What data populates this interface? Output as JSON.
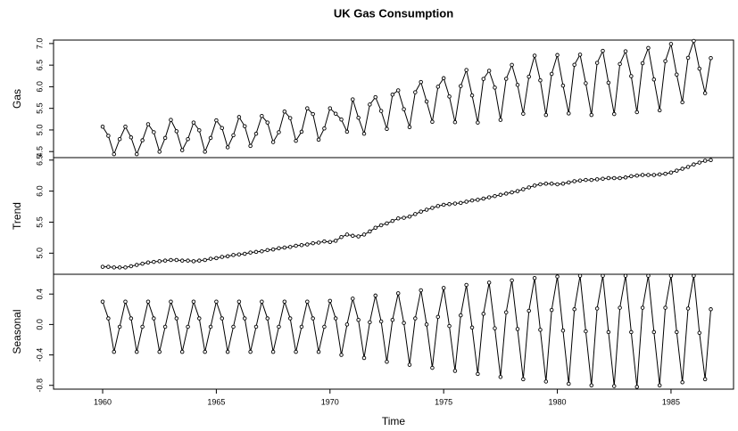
{
  "chart_data": {
    "type": "line",
    "title": "UK Gas Consumption",
    "xlabel": "Time",
    "xlim": [
      1957.84,
      1987.75
    ],
    "xticks": [
      1960,
      1965,
      1970,
      1975,
      1980,
      1985
    ],
    "color": "#000000",
    "x": [
      1960,
      1960.25,
      1960.5,
      1960.75,
      1961,
      1961.25,
      1961.5,
      1961.75,
      1962,
      1962.25,
      1962.5,
      1962.75,
      1963,
      1963.25,
      1963.5,
      1963.75,
      1964,
      1964.25,
      1964.5,
      1964.75,
      1965,
      1965.25,
      1965.5,
      1965.75,
      1966,
      1966.25,
      1966.5,
      1966.75,
      1967,
      1967.25,
      1967.5,
      1967.75,
      1968,
      1968.25,
      1968.5,
      1968.75,
      1969,
      1969.25,
      1969.5,
      1969.75,
      1970,
      1970.25,
      1970.5,
      1970.75,
      1971,
      1971.25,
      1971.5,
      1971.75,
      1972,
      1972.25,
      1972.5,
      1972.75,
      1973,
      1973.25,
      1973.5,
      1973.75,
      1974,
      1974.25,
      1974.5,
      1974.75,
      1975,
      1975.25,
      1975.5,
      1975.75,
      1976,
      1976.25,
      1976.5,
      1976.75,
      1977,
      1977.25,
      1977.5,
      1977.75,
      1978,
      1978.25,
      1978.5,
      1978.75,
      1979,
      1979.25,
      1979.5,
      1979.75,
      1980,
      1980.25,
      1980.5,
      1980.75,
      1981,
      1981.25,
      1981.5,
      1981.75,
      1982,
      1982.25,
      1982.5,
      1982.75,
      1983,
      1983.25,
      1983.5,
      1983.75,
      1984,
      1984.25,
      1984.5,
      1984.75,
      1985,
      1985.25,
      1985.5,
      1985.75,
      1986,
      1986.25,
      1986.5,
      1986.75
    ],
    "panels": [
      {
        "ylabel": "Gas",
        "ylim": [
          4.36,
          7.08
        ],
        "yticks": [
          4.5,
          {
            "value": 5,
            "label": "5.0"
          },
          5.5,
          {
            "value": 6,
            "label": "6.0"
          },
          6.5,
          {
            "value": 7,
            "label": "7.0"
          }
        ],
        "values": [
          5.076,
          4.865,
          4.44,
          4.788,
          5.076,
          4.828,
          4.44,
          4.761,
          5.134,
          4.948,
          4.496,
          4.815,
          5.233,
          4.971,
          4.532,
          4.788,
          5.171,
          4.992,
          4.496,
          4.815,
          5.224,
          5.045,
          4.598,
          4.877,
          5.299,
          5.086,
          4.63,
          4.913,
          5.323,
          5.171,
          4.719,
          4.948,
          5.426,
          5.275,
          4.748,
          4.959,
          5.501,
          5.368,
          4.775,
          5.035,
          5.501,
          5.376,
          5.241,
          4.959,
          5.707,
          5.283,
          4.913,
          5.588,
          5.759,
          5.44,
          5.025,
          5.818,
          5.917,
          5.481,
          5.066,
          5.873,
          6.109,
          5.658,
          5.189,
          6.0,
          6.198,
          5.774,
          5.18,
          6.016,
          6.387,
          5.799,
          5.171,
          6.181,
          6.37,
          5.98,
          5.233,
          6.184,
          6.506,
          6.043,
          5.376,
          6.233,
          6.719,
          6.147,
          5.346,
          6.297,
          6.734,
          6.027,
          5.383,
          6.508,
          6.743,
          6.08,
          5.346,
          6.553,
          6.83,
          6.094,
          5.368,
          6.527,
          6.821,
          6.245,
          5.412,
          6.544,
          6.897,
          6.168,
          5.454,
          6.593,
          6.991,
          6.282,
          5.641,
          6.669,
          7.06,
          6.418,
          5.851,
          6.663
        ]
      },
      {
        "ylabel": "Trend",
        "ylim": [
          4.66,
          6.54
        ],
        "yticks": [
          {
            "value": 5,
            "label": "5.0"
          },
          5.5,
          {
            "value": 6,
            "label": "6.0"
          },
          6.5
        ],
        "values": [
          4.78,
          4.78,
          4.77,
          4.77,
          4.77,
          4.79,
          4.81,
          4.83,
          4.85,
          4.86,
          4.87,
          4.88,
          4.89,
          4.89,
          4.88,
          4.88,
          4.87,
          4.88,
          4.89,
          4.91,
          4.92,
          4.94,
          4.95,
          4.97,
          4.98,
          4.99,
          5.01,
          5.02,
          5.03,
          5.05,
          5.06,
          5.08,
          5.09,
          5.1,
          5.12,
          5.13,
          5.14,
          5.16,
          5.17,
          5.19,
          5.18,
          5.2,
          5.26,
          5.3,
          5.28,
          5.27,
          5.3,
          5.35,
          5.41,
          5.45,
          5.48,
          5.52,
          5.56,
          5.57,
          5.59,
          5.63,
          5.67,
          5.7,
          5.73,
          5.76,
          5.78,
          5.79,
          5.8,
          5.81,
          5.83,
          5.85,
          5.86,
          5.88,
          5.9,
          5.92,
          5.94,
          5.96,
          5.98,
          6.0,
          6.03,
          6.06,
          6.09,
          6.11,
          6.12,
          6.12,
          6.11,
          6.12,
          6.14,
          6.16,
          6.17,
          6.18,
          6.18,
          6.19,
          6.2,
          6.21,
          6.21,
          6.21,
          6.22,
          6.24,
          6.25,
          6.26,
          6.26,
          6.26,
          6.27,
          6.28,
          6.3,
          6.33,
          6.36,
          6.39,
          6.43,
          6.46,
          6.49,
          6.5
        ]
      },
      {
        "ylabel": "Seasonal",
        "ylim": [
          -0.85,
          0.66
        ],
        "yticks": [
          -0.8,
          -0.4,
          {
            "value": 0,
            "label": "0.0"
          },
          0.4
        ],
        "values": [
          0.3,
          0.08,
          -0.36,
          -0.03,
          0.3,
          0.08,
          -0.36,
          -0.03,
          0.3,
          0.08,
          -0.36,
          -0.03,
          0.3,
          0.08,
          -0.36,
          -0.03,
          0.3,
          0.08,
          -0.36,
          -0.03,
          0.3,
          0.08,
          -0.36,
          -0.03,
          0.3,
          0.08,
          -0.36,
          -0.03,
          0.3,
          0.08,
          -0.36,
          -0.03,
          0.3,
          0.08,
          -0.36,
          -0.03,
          0.3,
          0.08,
          -0.36,
          -0.03,
          0.31,
          0.08,
          -0.4,
          0.0,
          0.34,
          0.06,
          -0.44,
          0.03,
          0.38,
          0.04,
          -0.49,
          0.06,
          0.41,
          0.02,
          -0.53,
          0.08,
          0.45,
          0.0,
          -0.57,
          0.1,
          0.48,
          -0.02,
          -0.61,
          0.12,
          0.52,
          -0.04,
          -0.65,
          0.14,
          0.55,
          -0.05,
          -0.69,
          0.16,
          0.58,
          -0.06,
          -0.72,
          0.18,
          0.61,
          -0.07,
          -0.75,
          0.19,
          0.63,
          -0.08,
          -0.78,
          0.2,
          0.64,
          -0.09,
          -0.8,
          0.21,
          0.64,
          -0.1,
          -0.81,
          0.22,
          0.64,
          -0.1,
          -0.82,
          0.22,
          0.64,
          -0.1,
          -0.8,
          0.22,
          0.64,
          -0.1,
          -0.76,
          0.21,
          0.64,
          -0.11,
          -0.72,
          0.2
        ]
      }
    ]
  }
}
